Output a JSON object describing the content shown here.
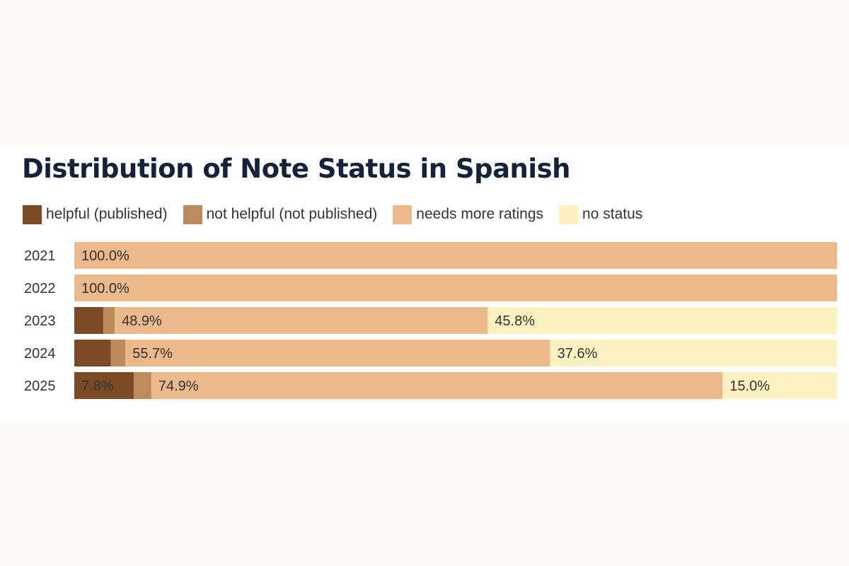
{
  "chart_data": {
    "type": "bar",
    "orientation": "horizontal",
    "stacked": true,
    "title": "Distribution of Note Status in Spanish",
    "categories": [
      "2021",
      "2022",
      "2023",
      "2024",
      "2025"
    ],
    "xlim": [
      0,
      100
    ],
    "legend_position": "top",
    "grid": false,
    "series": [
      {
        "name": "helpful (published)",
        "color": "#7b4a24",
        "values": [
          0,
          0,
          3.8,
          4.8,
          7.8
        ],
        "labels": [
          "",
          "",
          "",
          "",
          "7.8%"
        ]
      },
      {
        "name": "not helpful (not published)",
        "color": "#bd8a5b",
        "values": [
          0,
          0,
          1.5,
          1.9,
          2.3
        ],
        "labels": [
          "",
          "",
          "",
          "",
          ""
        ]
      },
      {
        "name": "needs more ratings",
        "color": "#ebb98b",
        "values": [
          100.0,
          100.0,
          48.9,
          55.7,
          74.9
        ],
        "labels": [
          "100.0%",
          "100.0%",
          "48.9%",
          "55.7%",
          "74.9%"
        ]
      },
      {
        "name": "no status",
        "color": "#fdf0c1",
        "values": [
          0,
          0,
          45.8,
          37.6,
          15.0
        ],
        "labels": [
          "",
          "",
          "45.8%",
          "37.6%",
          "15.0%"
        ]
      }
    ]
  }
}
